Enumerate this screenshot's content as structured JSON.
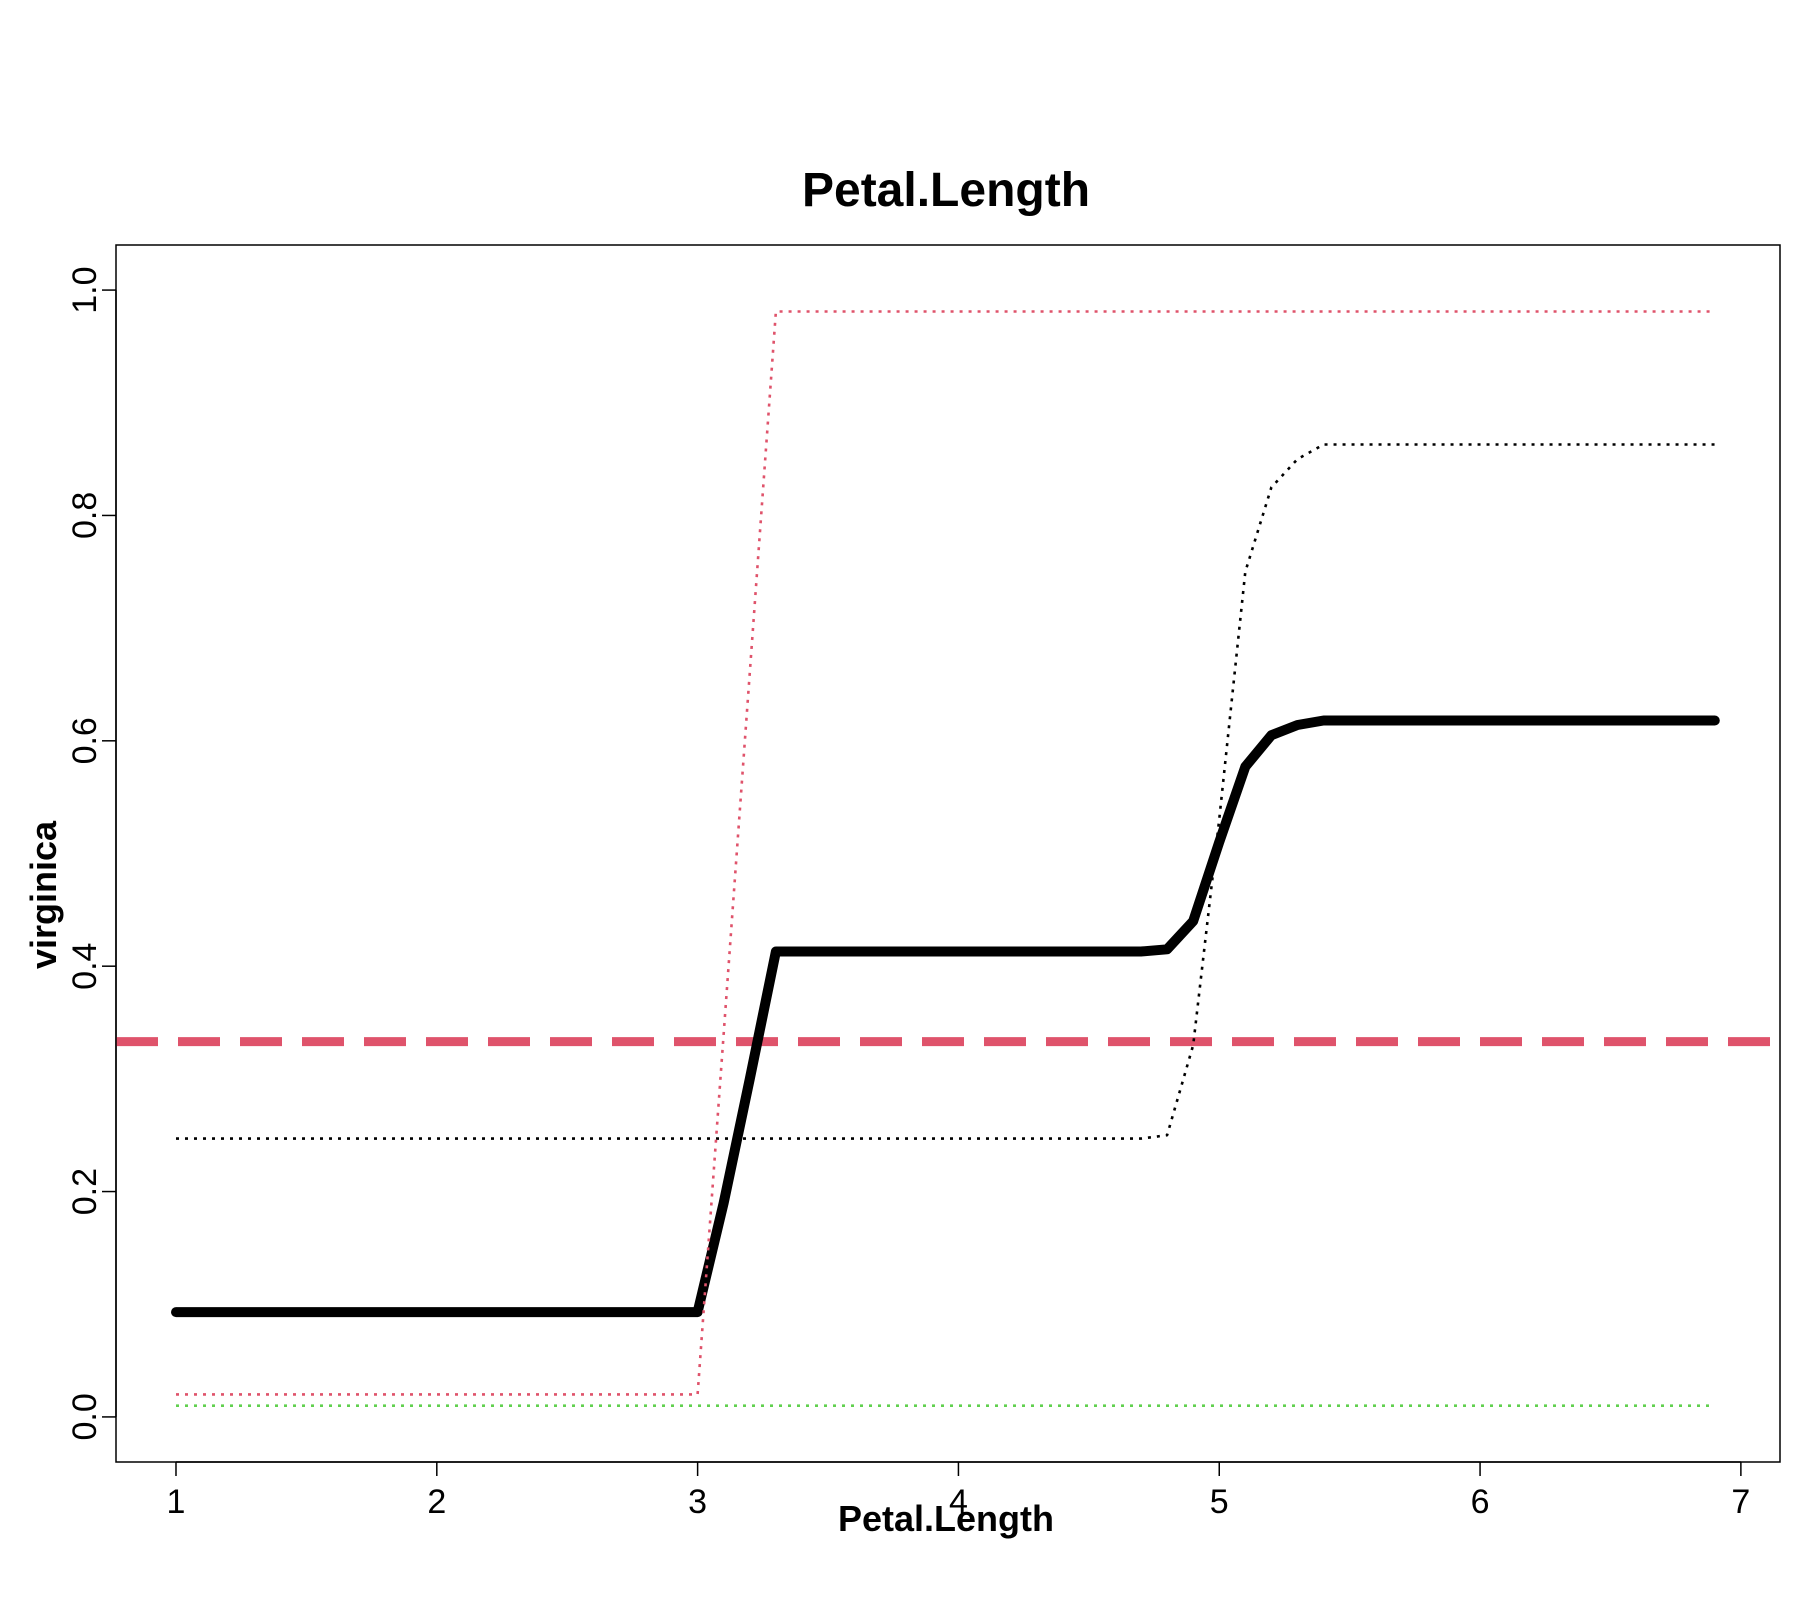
{
  "chart_data": {
    "type": "line",
    "title": "Petal.Length",
    "xlabel": "Petal.Length",
    "ylabel": "virginica",
    "xlim": [
      0.77,
      7.15
    ],
    "ylim": [
      -0.04,
      1.04
    ],
    "x_ticks": [
      "1",
      "2",
      "3",
      "4",
      "5",
      "6",
      "7"
    ],
    "y_ticks": [
      "0.0",
      "0.2",
      "0.4",
      "0.6",
      "0.8",
      "1.0"
    ],
    "grid": false,
    "legend": "none",
    "series": [
      {
        "role": "mean",
        "color": "#000000",
        "style": "solid-thick",
        "x": [
          1.0,
          3.0,
          3.1,
          3.2,
          3.3,
          4.7,
          4.8,
          4.9,
          5.0,
          5.1,
          5.2,
          5.3,
          5.4,
          6.9
        ],
        "y": [
          0.093,
          0.093,
          0.19,
          0.3,
          0.413,
          0.413,
          0.415,
          0.44,
          0.51,
          0.577,
          0.605,
          0.614,
          0.618,
          0.618
        ]
      },
      {
        "role": "upper-band",
        "color": "#000000",
        "style": "dotted",
        "x": [
          1.0,
          4.7,
          4.8,
          4.9,
          5.0,
          5.1,
          5.2,
          5.3,
          5.4,
          6.9
        ],
        "y": [
          0.247,
          0.247,
          0.25,
          0.33,
          0.53,
          0.75,
          0.825,
          0.85,
          0.863,
          0.863
        ]
      },
      {
        "role": "max",
        "color": "#df536b",
        "style": "dotted",
        "x": [
          1.0,
          3.0,
          3.3,
          6.9
        ],
        "y": [
          0.02,
          0.02,
          0.981,
          0.981
        ]
      },
      {
        "role": "min",
        "color": "#61d04f",
        "style": "dotted",
        "x": [
          1.0,
          6.9
        ],
        "y": [
          0.01,
          0.01
        ]
      }
    ],
    "reference_line": {
      "y": 0.333,
      "color": "#df536b",
      "style": "dashed-thick"
    }
  }
}
